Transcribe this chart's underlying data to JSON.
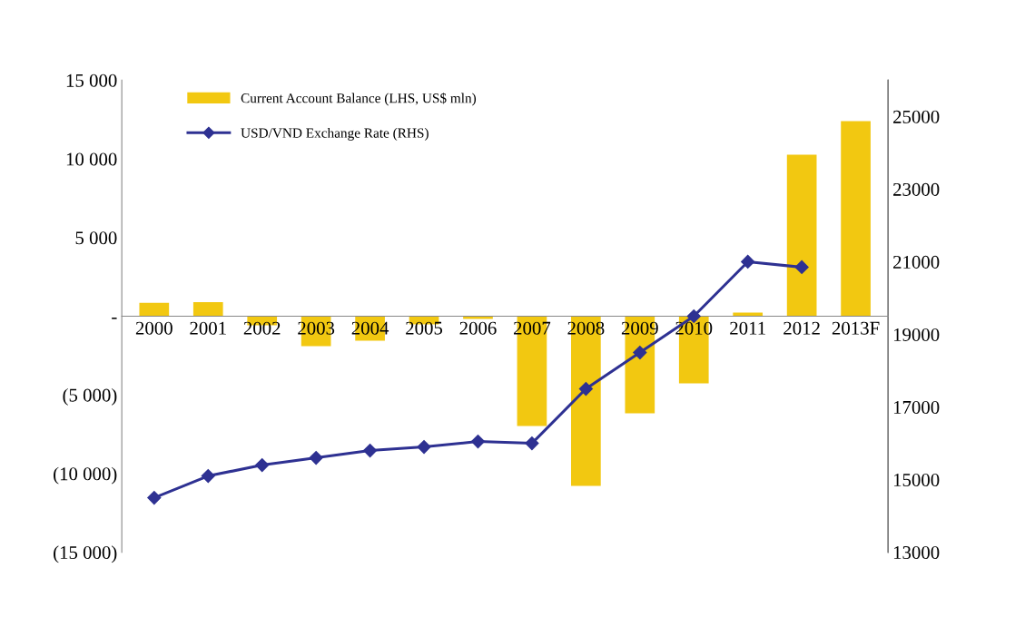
{
  "chart_data": {
    "type": "bar",
    "categories": [
      "2000",
      "2001",
      "2002",
      "2003",
      "2004",
      "2005",
      "2006",
      "2007",
      "2008",
      "2009",
      "2010",
      "2011",
      "2012",
      "2013F"
    ],
    "series": [
      {
        "name": "Current Account Balance (LHS, US$ mln)",
        "color": "#f2c811",
        "values": [
          850,
          900,
          -580,
          -1900,
          -1550,
          -520,
          -170,
          -6980,
          -10790,
          -6170,
          -4270,
          230,
          10270,
          12400
        ]
      },
      {
        "name": "USD/VND Exchange Rate (RHS)",
        "type": "line",
        "axis": "y2",
        "color": "#2e3192",
        "marker": "diamond",
        "values": [
          14500,
          15100,
          15400,
          15600,
          15800,
          15900,
          16050,
          16000,
          17500,
          18500,
          19500,
          21000,
          20850,
          null
        ]
      }
    ],
    "ylim": [
      -15000,
      15000
    ],
    "yticks": [
      {
        "value": -15000,
        "label": "(15 000)"
      },
      {
        "value": -10000,
        "label": "(10 000)"
      },
      {
        "value": -5000,
        "label": "(5 000)"
      },
      {
        "value": 0,
        "label": "-"
      },
      {
        "value": 5000,
        "label": "5 000"
      },
      {
        "value": 10000,
        "label": "10 000"
      },
      {
        "value": 15000,
        "label": "15 000"
      }
    ],
    "y2lim": [
      13000,
      26000
    ],
    "y2ticks": [
      13000,
      15000,
      17000,
      19000,
      21000,
      23000,
      25000
    ],
    "legend": "top left",
    "grid": false
  }
}
